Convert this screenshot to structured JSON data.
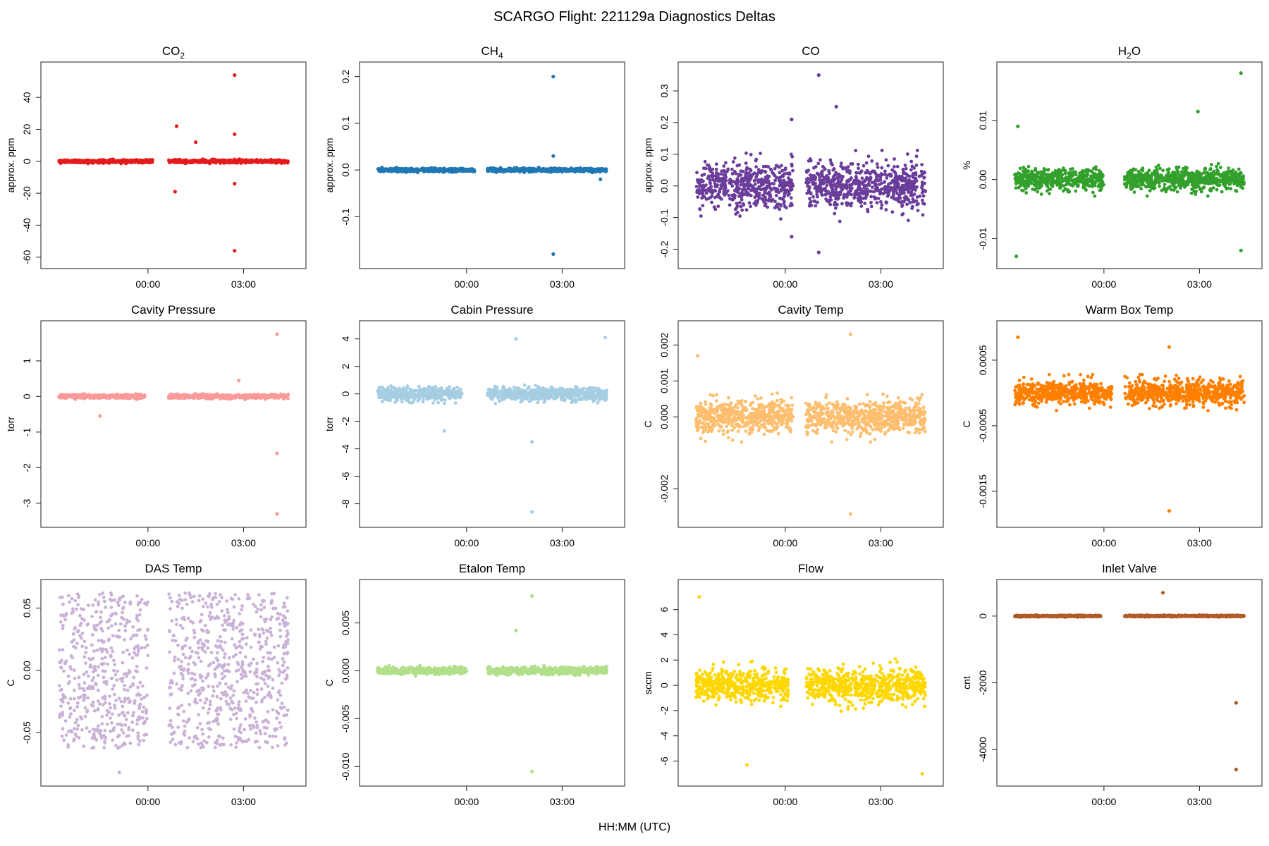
{
  "figure": {
    "title": "SCARGO Flight: 221129a  Diagnostics Deltas",
    "xlabel": "HH:MM (UTC)",
    "x_ticks": [
      {
        "value": 0,
        "label": "00:00"
      },
      {
        "value": 3,
        "label": "03:00"
      }
    ],
    "x_range_hours": [
      -3.05,
      4.65
    ],
    "panels": [
      {
        "id": "co2",
        "title": "CO",
        "title_sub": "2",
        "ylabel": "approx. ppm",
        "color": "#e41a1c",
        "yticks": [
          -60,
          -40,
          -20,
          0,
          20,
          40
        ],
        "ylim": [
          -61,
          56
        ]
      },
      {
        "id": "ch4",
        "title": "CH",
        "title_sub": "4",
        "ylabel": "approx. ppm",
        "color": "#1f78b4",
        "yticks": [
          -0.1,
          0.0,
          0.1,
          0.2
        ],
        "ylim": [
          -0.19,
          0.21
        ]
      },
      {
        "id": "co",
        "title": "CO",
        "title_sub": "",
        "ylabel": "approx. ppm",
        "color": "#6a3d9a",
        "yticks": [
          -0.2,
          -0.1,
          0.0,
          0.1,
          0.2,
          0.3
        ],
        "ylim": [
          -0.23,
          0.36
        ]
      },
      {
        "id": "h2o",
        "title": "H",
        "title_sub": "2",
        "title_rest": "O",
        "ylabel": "%",
        "color": "#33a02c",
        "yticks": [
          -0.01,
          0.0,
          0.01
        ],
        "ylim": [
          -0.0134,
          0.0182
        ]
      },
      {
        "id": "cavity_pressure",
        "title": "Cavity Pressure",
        "ylabel": "torr",
        "color": "#fb9a99",
        "yticks": [
          -3,
          -2,
          -1,
          0,
          1
        ],
        "ylim": [
          -3.4,
          1.85
        ]
      },
      {
        "id": "cabin_pressure",
        "title": "Cabin Pressure",
        "ylabel": "torr",
        "color": "#a6cee3",
        "yticks": [
          -8,
          -6,
          -4,
          -2,
          0,
          2,
          4
        ],
        "ylim": [
          -9.0,
          4.6
        ]
      },
      {
        "id": "cavity_temp",
        "title": "Cavity Temp",
        "ylabel": "C",
        "color": "#fdbf6f",
        "yticks": [
          -0.002,
          0.0,
          0.001,
          0.002
        ],
        "ylim": [
          -0.0028,
          0.0024
        ]
      },
      {
        "id": "warm_box_temp",
        "title": "Warm Box Temp",
        "ylabel": "C",
        "color": "#ff7f00",
        "yticks": [
          -0.0015,
          -0.0005,
          0.0005
        ],
        "ylim": [
          -0.0019,
          0.00095
        ]
      },
      {
        "id": "das_temp",
        "title": "DAS Temp",
        "ylabel": "C",
        "color": "#cab2d6",
        "yticks": [
          -0.05,
          0.0,
          0.05
        ],
        "ylim": [
          -0.085,
          0.065
        ]
      },
      {
        "id": "etalon_temp",
        "title": "Etalon Temp",
        "ylabel": "C",
        "color": "#b2df8a",
        "yticks": [
          -0.01,
          -0.005,
          0.0,
          0.005
        ],
        "ylim": [
          -0.011,
          0.0085
        ]
      },
      {
        "id": "flow",
        "title": "Flow",
        "ylabel": "sccm",
        "color": "#ffd700",
        "yticks": [
          -6,
          -4,
          -2,
          0,
          2,
          4,
          6
        ],
        "ylim": [
          -7.2,
          7.6
        ]
      },
      {
        "id": "inlet_valve",
        "title": "Inlet Valve",
        "ylabel": "cnt",
        "color": "#b15928",
        "yticks": [
          -4000,
          -2000,
          0
        ],
        "ylim": [
          -4800,
          800
        ]
      }
    ]
  },
  "chart_data": [
    {
      "type": "scatter",
      "title": "CO2",
      "ylabel": "approx. ppm",
      "ylim": [
        -61,
        56
      ],
      "segments_hours": [
        [
          -2.8,
          0.15
        ],
        [
          0.65,
          4.4
        ]
      ],
      "typical_spread": 1.0,
      "outliers": [
        {
          "x": 0.9,
          "y": 22
        },
        {
          "x": 0.85,
          "y": -19
        },
        {
          "x": 1.5,
          "y": 12
        },
        {
          "x": 2.72,
          "y": 54
        },
        {
          "x": 2.72,
          "y": 17
        },
        {
          "x": 2.72,
          "y": -14
        },
        {
          "x": 2.72,
          "y": -56
        }
      ]
    },
    {
      "type": "scatter",
      "title": "CH4",
      "ylabel": "approx. ppm",
      "ylim": [
        -0.19,
        0.21
      ],
      "segments_hours": [
        [
          -2.8,
          0.25
        ],
        [
          0.65,
          4.4
        ]
      ],
      "typical_spread": 0.004,
      "outliers": [
        {
          "x": 2.72,
          "y": 0.2
        },
        {
          "x": 2.72,
          "y": 0.03
        },
        {
          "x": 2.72,
          "y": -0.18
        },
        {
          "x": 4.2,
          "y": -0.02
        }
      ]
    },
    {
      "type": "scatter",
      "title": "CO",
      "ylabel": "approx. ppm",
      "ylim": [
        -0.23,
        0.36
      ],
      "segments_hours": [
        [
          -2.8,
          0.25
        ],
        [
          0.65,
          4.4
        ]
      ],
      "typical_spread": 0.08,
      "outliers": [
        {
          "x": 1.05,
          "y": 0.35
        },
        {
          "x": 1.6,
          "y": 0.25
        },
        {
          "x": 0.2,
          "y": 0.21
        },
        {
          "x": 1.05,
          "y": -0.21
        },
        {
          "x": 0.2,
          "y": -0.16
        }
      ]
    },
    {
      "type": "scatter",
      "title": "H2O",
      "ylabel": "%",
      "ylim": [
        -0.0134,
        0.0182
      ],
      "segments_hours": [
        [
          -2.8,
          0.0
        ],
        [
          0.65,
          4.4
        ]
      ],
      "typical_spread": 0.002,
      "outliers": [
        {
          "x": 4.3,
          "y": 0.018
        },
        {
          "x": 4.3,
          "y": -0.012
        },
        {
          "x": -2.75,
          "y": -0.013
        },
        {
          "x": -2.7,
          "y": 0.009
        },
        {
          "x": 2.95,
          "y": 0.0115
        }
      ]
    },
    {
      "type": "scatter",
      "title": "Cavity Pressure",
      "ylabel": "torr",
      "ylim": [
        -3.4,
        1.85
      ],
      "segments_hours": [
        [
          -2.8,
          -0.1
        ],
        [
          0.65,
          4.4
        ]
      ],
      "typical_spread": 0.06,
      "outliers": [
        {
          "x": -1.5,
          "y": -0.55
        },
        {
          "x": 2.85,
          "y": 0.45
        },
        {
          "x": 4.05,
          "y": 1.75
        },
        {
          "x": 4.05,
          "y": -3.3
        },
        {
          "x": 4.05,
          "y": -1.6
        }
      ]
    },
    {
      "type": "scatter",
      "title": "Cabin Pressure",
      "ylabel": "torr",
      "ylim": [
        -9.0,
        4.6
      ],
      "segments_hours": [
        [
          -2.8,
          -0.15
        ],
        [
          0.65,
          4.4
        ]
      ],
      "typical_spread": 0.5,
      "outliers": [
        {
          "x": 1.55,
          "y": 4.0
        },
        {
          "x": 2.05,
          "y": -8.6
        },
        {
          "x": 2.05,
          "y": -3.5
        },
        {
          "x": 4.35,
          "y": 4.1
        },
        {
          "x": -0.7,
          "y": -2.7
        }
      ]
    },
    {
      "type": "scatter",
      "title": "Cavity Temp",
      "ylabel": "C",
      "ylim": [
        -0.0028,
        0.0024
      ],
      "segments_hours": [
        [
          -2.8,
          0.25
        ],
        [
          0.65,
          4.4
        ]
      ],
      "typical_spread": 0.0005,
      "outliers": [
        {
          "x": 2.05,
          "y": 0.0023
        },
        {
          "x": 2.05,
          "y": -0.0027
        },
        {
          "x": -2.75,
          "y": 0.0017
        }
      ]
    },
    {
      "type": "scatter",
      "title": "Warm Box Temp",
      "ylabel": "C",
      "ylim": [
        -0.0019,
        0.00095
      ],
      "segments_hours": [
        [
          -2.8,
          0.25
        ],
        [
          0.65,
          4.4
        ]
      ],
      "typical_spread": 0.0002,
      "outliers": [
        {
          "x": 2.05,
          "y": -0.0018
        },
        {
          "x": -2.7,
          "y": 0.00085
        },
        {
          "x": 2.05,
          "y": 0.0007
        }
      ]
    },
    {
      "type": "scatter",
      "title": "DAS Temp",
      "ylabel": "C",
      "ylim": [
        -0.085,
        0.065
      ],
      "segments_hours": [
        [
          -2.8,
          0.0
        ],
        [
          0.65,
          4.4
        ]
      ],
      "typical_spread": 0.062,
      "outliers": [
        {
          "x": -0.9,
          "y": -0.082
        }
      ]
    },
    {
      "type": "scatter",
      "title": "Etalon Temp",
      "ylabel": "C",
      "ylim": [
        -0.011,
        0.0085
      ],
      "segments_hours": [
        [
          -2.8,
          0.0
        ],
        [
          0.65,
          4.4
        ]
      ],
      "typical_spread": 0.0004,
      "outliers": [
        {
          "x": 2.05,
          "y": 0.0078
        },
        {
          "x": 2.05,
          "y": -0.0105
        },
        {
          "x": 1.55,
          "y": 0.0042
        }
      ]
    },
    {
      "type": "scatter",
      "title": "Flow",
      "ylabel": "sccm",
      "ylim": [
        -7.2,
        7.6
      ],
      "segments_hours": [
        [
          -2.8,
          0.1
        ],
        [
          0.65,
          4.4
        ]
      ],
      "typical_spread": 1.5,
      "outliers": [
        {
          "x": -2.7,
          "y": 7.0
        },
        {
          "x": 4.3,
          "y": -7.0
        },
        {
          "x": -1.2,
          "y": -6.3
        }
      ]
    },
    {
      "type": "scatter",
      "title": "Inlet Valve",
      "ylabel": "cnt",
      "ylim": [
        -4800,
        800
      ],
      "segments_hours": [
        [
          -2.8,
          -0.1
        ],
        [
          0.65,
          4.4
        ]
      ],
      "typical_spread": 25,
      "outliers": [
        {
          "x": 1.85,
          "y": 700
        },
        {
          "x": 4.15,
          "y": -4600
        },
        {
          "x": 4.15,
          "y": -2600
        }
      ]
    }
  ]
}
